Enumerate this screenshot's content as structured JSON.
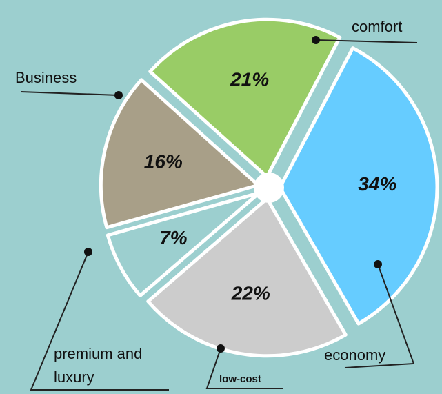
{
  "chart_data": {
    "type": "pie",
    "categories": [
      "comfort",
      "economy",
      "low-cost",
      "premium and luxury",
      "Business"
    ],
    "values": [
      21,
      34,
      22,
      7,
      16
    ],
    "value_labels": [
      "21%",
      "34%",
      "22%",
      "7%",
      "16%"
    ],
    "colors": [
      "#99cc66",
      "#66ccff",
      "#cccccc",
      "#9ccfcf",
      "#a89f88"
    ]
  }
}
